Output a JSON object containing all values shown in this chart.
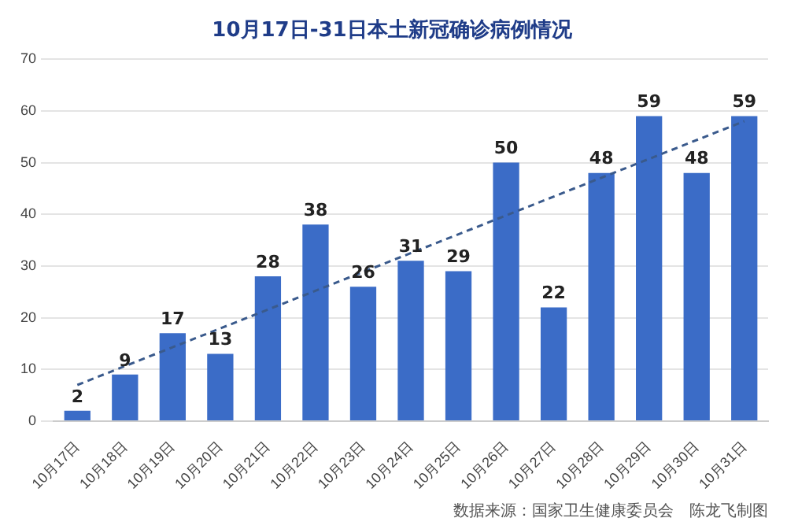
{
  "chart_data": {
    "type": "bar",
    "title": "10月17日-31日本土新冠确诊病例情况",
    "categories": [
      "10月17日",
      "10月18日",
      "10月19日",
      "10月20日",
      "10月21日",
      "10月22日",
      "10月23日",
      "10月24日",
      "10月25日",
      "10月26日",
      "10月27日",
      "10月28日",
      "10月29日",
      "10月30日",
      "10月31日"
    ],
    "series": [
      {
        "color": "#3b6cc7",
        "values": [
          2,
          9,
          17,
          13,
          28,
          38,
          26,
          31,
          29,
          50,
          22,
          48,
          59,
          48,
          59
        ],
        "value_labels": [
          "2",
          "9",
          "17",
          "13",
          "28",
          "38",
          "26",
          "31",
          "29",
          "50",
          "22",
          "48",
          "59",
          "48",
          "59"
        ]
      },
      {
        "type": "line",
        "color": "#3a5a8c",
        "line_style": "dashed",
        "marker": "none",
        "x": [
          "10月17日",
          "10月31日"
        ],
        "values": [
          7,
          58
        ]
      }
    ],
    "ylim": [
      0,
      70
    ],
    "yticks": [
      0,
      10,
      20,
      30,
      40,
      50,
      60,
      70
    ],
    "grid": "y",
    "legend": false,
    "annotations": [
      "数据来源：国家卫生健康委员会　陈龙飞制图"
    ]
  }
}
